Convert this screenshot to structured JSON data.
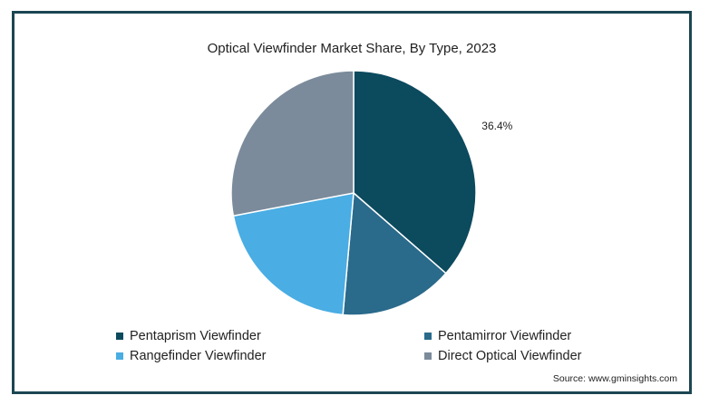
{
  "chart_data": {
    "type": "pie",
    "title": "Optical Viewfinder Market Share, By Type, 2023",
    "slices": [
      {
        "name": "Pentaprism Viewfinder",
        "value": 36.4,
        "color": "#0c4a5e",
        "label": "36.4%"
      },
      {
        "name": "Pentamirror Viewfinder",
        "value": 15.0,
        "color": "#2a6a8b",
        "label": ""
      },
      {
        "name": "Rangefinder Viewfinder",
        "value": 20.6,
        "color": "#4aade3",
        "label": ""
      },
      {
        "name": "Direct Optical Viewfinder",
        "value": 28.0,
        "color": "#7b8b9b",
        "label": ""
      }
    ],
    "legend_position": "bottom",
    "source": "Source: www.gminsights.com"
  }
}
